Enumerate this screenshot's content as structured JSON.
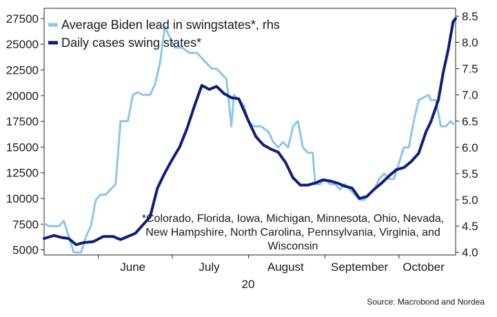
{
  "chart_data": {
    "type": "line",
    "title": "",
    "xlabel": "",
    "x_months": [
      "June",
      "July",
      "August",
      "September",
      "October"
    ],
    "x_year_label": "20",
    "y_left": {
      "ticks": [
        5000,
        7500,
        10000,
        12500,
        15000,
        17500,
        20000,
        22500,
        25000,
        27500
      ],
      "labels": [
        "5000",
        "7500",
        "10000",
        "12500",
        "15000",
        "17500",
        "20000",
        "22500",
        "25000",
        "27500"
      ],
      "range": [
        4500,
        28500
      ]
    },
    "y_right": {
      "ticks": [
        4.0,
        4.5,
        5.0,
        5.5,
        6.0,
        6.5,
        7.0,
        7.5,
        8.0,
        8.5
      ],
      "labels": [
        "4.0",
        "4.5",
        "5.0",
        "5.5",
        "6.0",
        "6.5",
        "7.0",
        "7.5",
        "8.0",
        "8.5"
      ],
      "range": [
        3.95,
        8.65
      ]
    },
    "x_range": [
      "2020-05-10",
      "2020-10-24"
    ],
    "legend_position": "top-left",
    "series": [
      {
        "name": "Average Biden lead in swingstates*, rhs",
        "axis": "right",
        "color": "#8cc4ef",
        "points": [
          [
            "2020-05-10",
            4.55
          ],
          [
            "2020-05-12",
            4.5
          ],
          [
            "2020-05-16",
            4.5
          ],
          [
            "2020-05-18",
            4.6
          ],
          [
            "2020-05-20",
            4.3
          ],
          [
            "2020-05-22",
            4.0
          ],
          [
            "2020-05-25",
            4.0
          ],
          [
            "2020-05-27",
            4.3
          ],
          [
            "2020-05-29",
            4.5
          ],
          [
            "2020-05-31",
            5.0
          ],
          [
            "2020-06-02",
            5.1
          ],
          [
            "2020-06-04",
            5.1
          ],
          [
            "2020-06-06",
            5.2
          ],
          [
            "2020-06-08",
            5.3
          ],
          [
            "2020-06-10",
            6.5
          ],
          [
            "2020-06-13",
            6.5
          ],
          [
            "2020-06-15",
            7.0
          ],
          [
            "2020-06-17",
            7.05
          ],
          [
            "2020-06-19",
            7.0
          ],
          [
            "2020-06-22",
            7.0
          ],
          [
            "2020-06-24",
            7.2
          ],
          [
            "2020-06-26",
            7.6
          ],
          [
            "2020-06-28",
            8.3
          ],
          [
            "2020-06-30",
            8.1
          ],
          [
            "2020-07-02",
            7.9
          ],
          [
            "2020-07-05",
            7.9
          ],
          [
            "2020-07-08",
            7.8
          ],
          [
            "2020-07-11",
            7.8
          ],
          [
            "2020-07-13",
            7.7
          ],
          [
            "2020-07-15",
            7.6
          ],
          [
            "2020-07-17",
            7.5
          ],
          [
            "2020-07-19",
            7.5
          ],
          [
            "2020-07-21",
            7.4
          ],
          [
            "2020-07-23",
            7.3
          ],
          [
            "2020-07-25",
            6.4
          ],
          [
            "2020-07-26",
            7.0
          ],
          [
            "2020-07-28",
            6.9
          ],
          [
            "2020-07-30",
            6.8
          ],
          [
            "2020-08-01",
            6.5
          ],
          [
            "2020-08-03",
            6.4
          ],
          [
            "2020-08-06",
            6.4
          ],
          [
            "2020-08-09",
            6.3
          ],
          [
            "2020-08-11",
            6.1
          ],
          [
            "2020-08-13",
            6.0
          ],
          [
            "2020-08-15",
            6.1
          ],
          [
            "2020-08-17",
            6.0
          ],
          [
            "2020-08-19",
            6.4
          ],
          [
            "2020-08-21",
            6.5
          ],
          [
            "2020-08-23",
            6.0
          ],
          [
            "2020-08-25",
            5.9
          ],
          [
            "2020-08-27",
            5.9
          ],
          [
            "2020-08-28",
            5.3
          ],
          [
            "2020-08-30",
            5.3
          ],
          [
            "2020-09-01",
            5.4
          ],
          [
            "2020-09-03",
            5.3
          ],
          [
            "2020-09-05",
            5.3
          ],
          [
            "2020-09-07",
            5.2
          ],
          [
            "2020-09-09",
            5.3
          ],
          [
            "2020-09-11",
            5.2
          ],
          [
            "2020-09-13",
            5.1
          ],
          [
            "2020-09-15",
            5.0
          ],
          [
            "2020-09-17",
            5.0
          ],
          [
            "2020-09-19",
            5.1
          ],
          [
            "2020-09-21",
            5.2
          ],
          [
            "2020-09-23",
            5.4
          ],
          [
            "2020-09-25",
            5.5
          ],
          [
            "2020-09-27",
            5.4
          ],
          [
            "2020-09-29",
            5.4
          ],
          [
            "2020-10-01",
            5.7
          ],
          [
            "2020-10-03",
            6.0
          ],
          [
            "2020-10-05",
            6.0
          ],
          [
            "2020-10-07",
            6.5
          ],
          [
            "2020-10-09",
            6.9
          ],
          [
            "2020-10-11",
            6.95
          ],
          [
            "2020-10-13",
            7.0
          ],
          [
            "2020-10-14",
            6.9
          ],
          [
            "2020-10-16",
            6.9
          ],
          [
            "2020-10-18",
            6.4
          ],
          [
            "2020-10-20",
            6.4
          ],
          [
            "2020-10-22",
            6.5
          ],
          [
            "2020-10-23",
            6.45
          ],
          [
            "2020-10-24",
            6.45
          ]
        ]
      },
      {
        "name": "Daily cases swing states*",
        "axis": "left",
        "color": "#0f1c7e",
        "points": [
          [
            "2020-05-10",
            6100
          ],
          [
            "2020-05-14",
            6400
          ],
          [
            "2020-05-17",
            6200
          ],
          [
            "2020-05-20",
            6100
          ],
          [
            "2020-05-23",
            5500
          ],
          [
            "2020-05-26",
            5700
          ],
          [
            "2020-05-30",
            5800
          ],
          [
            "2020-06-03",
            6300
          ],
          [
            "2020-06-07",
            6300
          ],
          [
            "2020-06-10",
            6000
          ],
          [
            "2020-06-13",
            6300
          ],
          [
            "2020-06-16",
            6600
          ],
          [
            "2020-06-19",
            7400
          ],
          [
            "2020-06-22",
            8200
          ],
          [
            "2020-06-25",
            11000
          ],
          [
            "2020-06-28",
            12500
          ],
          [
            "2020-07-01",
            13800
          ],
          [
            "2020-07-04",
            15000
          ],
          [
            "2020-07-07",
            16800
          ],
          [
            "2020-07-10",
            19000
          ],
          [
            "2020-07-13",
            21000
          ],
          [
            "2020-07-16",
            20600
          ],
          [
            "2020-07-19",
            20900
          ],
          [
            "2020-07-22",
            20200
          ],
          [
            "2020-07-25",
            19800
          ],
          [
            "2020-07-28",
            19700
          ],
          [
            "2020-08-01",
            17500
          ],
          [
            "2020-08-04",
            16000
          ],
          [
            "2020-08-07",
            15200
          ],
          [
            "2020-08-10",
            14800
          ],
          [
            "2020-08-13",
            14500
          ],
          [
            "2020-08-16",
            13500
          ],
          [
            "2020-08-19",
            12000
          ],
          [
            "2020-08-22",
            11300
          ],
          [
            "2020-08-25",
            11300
          ],
          [
            "2020-08-28",
            11500
          ],
          [
            "2020-08-31",
            11800
          ],
          [
            "2020-09-03",
            11700
          ],
          [
            "2020-09-06",
            11500
          ],
          [
            "2020-09-09",
            11200
          ],
          [
            "2020-09-12",
            11000
          ],
          [
            "2020-09-15",
            10000
          ],
          [
            "2020-09-18",
            10200
          ],
          [
            "2020-09-21",
            10900
          ],
          [
            "2020-09-24",
            11500
          ],
          [
            "2020-09-27",
            12200
          ],
          [
            "2020-09-30",
            12800
          ],
          [
            "2020-10-03",
            13000
          ],
          [
            "2020-10-06",
            13600
          ],
          [
            "2020-10-09",
            14400
          ],
          [
            "2020-10-12",
            16500
          ],
          [
            "2020-10-14",
            17500
          ],
          [
            "2020-10-17",
            19600
          ],
          [
            "2020-10-19",
            22300
          ],
          [
            "2020-10-21",
            24500
          ],
          [
            "2020-10-23",
            27200
          ],
          [
            "2020-10-24",
            27500
          ]
        ]
      }
    ],
    "annotation_lines": [
      "*Colorado, Florida, Iowa, Michigan, Minnesota, Ohio, Nevada,",
      "New Hampshire, North Carolina, Pennsylvania, Virginia, and",
      "Wisconsin"
    ],
    "source": "Source: Macrobond and Nordea"
  }
}
